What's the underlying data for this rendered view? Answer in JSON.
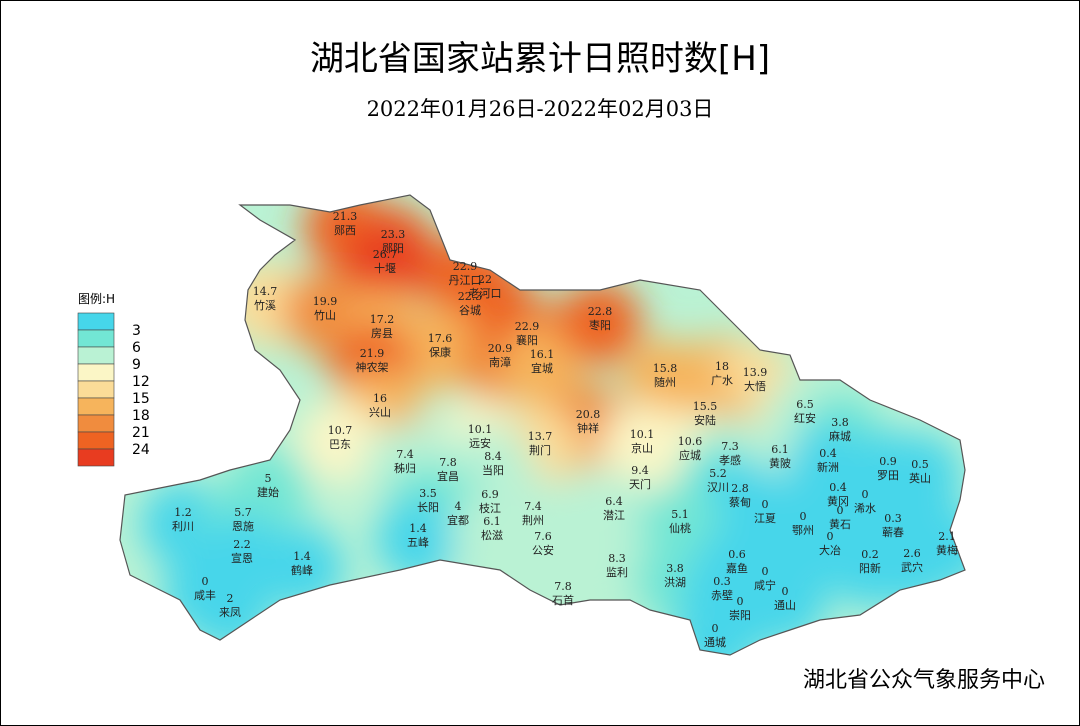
{
  "title": "湖北省国家站累计日照时数[H]",
  "subtitle": "2022年01月26日-2022年02月03日",
  "legend": {
    "title": "图例:H",
    "ticks": [
      3,
      6,
      9,
      12,
      15,
      18,
      21,
      24
    ],
    "colors": [
      "#46d6ea",
      "#72e6d4",
      "#baf2d4",
      "#fbf6c6",
      "#fbdc98",
      "#f6b45c",
      "#f08c3e",
      "#ee6322",
      "#e83c20"
    ]
  },
  "stations": [
    {
      "name": "郧西",
      "value": 21.3
    },
    {
      "name": "郧阳",
      "value": 23.3
    },
    {
      "name": "十堰",
      "value": 26.7
    },
    {
      "name": "丹江口",
      "value": 22.9
    },
    {
      "name": "老河口",
      "value": 22
    },
    {
      "name": "谷城",
      "value": 22.3
    },
    {
      "name": "竹溪",
      "value": 14.7
    },
    {
      "name": "竹山",
      "value": 19.9
    },
    {
      "name": "房县",
      "value": 17.2
    },
    {
      "name": "保康",
      "value": 17.6
    },
    {
      "name": "神农架",
      "value": 21.9
    },
    {
      "name": "南漳",
      "value": 20.9
    },
    {
      "name": "襄阳",
      "value": 22.9
    },
    {
      "name": "宜城",
      "value": 16.1
    },
    {
      "name": "枣阳",
      "value": 22.8
    },
    {
      "name": "随州",
      "value": 15.8
    },
    {
      "name": "广水",
      "value": 18
    },
    {
      "name": "大悟",
      "value": 13.9
    },
    {
      "name": "兴山",
      "value": 16
    },
    {
      "name": "钟祥",
      "value": 20.8
    },
    {
      "name": "安陆",
      "value": 15.5
    },
    {
      "name": "红安",
      "value": 6.5
    },
    {
      "name": "麻城",
      "value": 3.8
    },
    {
      "name": "巴东",
      "value": 10.7
    },
    {
      "name": "远安",
      "value": 10.1
    },
    {
      "name": "荆门",
      "value": 13.7
    },
    {
      "name": "京山",
      "value": 10.1
    },
    {
      "name": "应城",
      "value": 10.6
    },
    {
      "name": "孝感",
      "value": 7.3
    },
    {
      "name": "黄陂",
      "value": 6.1
    },
    {
      "name": "新洲",
      "value": 0.4
    },
    {
      "name": "罗田",
      "value": 0.9
    },
    {
      "name": "英山",
      "value": 0.5
    },
    {
      "name": "秭归",
      "value": 7.4
    },
    {
      "name": "宜昌",
      "value": 7.8
    },
    {
      "name": "当阳",
      "value": 8.4
    },
    {
      "name": "天门",
      "value": 9.4
    },
    {
      "name": "汉川",
      "value": 5.2
    },
    {
      "name": "蔡甸",
      "value": 2.8
    },
    {
      "name": "建始",
      "value": 5
    },
    {
      "name": "黄冈",
      "value": 0.4
    },
    {
      "name": "浠水",
      "value": 0
    },
    {
      "name": "长阳",
      "value": 3.5
    },
    {
      "name": "枝江",
      "value": 6.9
    },
    {
      "name": "荆州",
      "value": 7.4
    },
    {
      "name": "潜江",
      "value": 6.4
    },
    {
      "name": "仙桃",
      "value": 5.1
    },
    {
      "name": "利川",
      "value": 1.2
    },
    {
      "name": "恩施",
      "value": 5.7
    },
    {
      "name": "宜都",
      "value": 4
    },
    {
      "name": "五峰",
      "value": 1.4
    },
    {
      "name": "松滋",
      "value": 6.1
    },
    {
      "name": "公安",
      "value": 7.6
    },
    {
      "name": "江夏",
      "value": 0
    },
    {
      "name": "鄂州",
      "value": 0
    },
    {
      "name": "黄石",
      "value": 0
    },
    {
      "name": "蕲春",
      "value": 0.3
    },
    {
      "name": "宣恩",
      "value": 2.2
    },
    {
      "name": "鹤峰",
      "value": 1.4
    },
    {
      "name": "大冶",
      "value": 0
    },
    {
      "name": "阳新",
      "value": 0.2
    },
    {
      "name": "武穴",
      "value": 2.6
    },
    {
      "name": "黄梅",
      "value": 2.1
    },
    {
      "name": "监利",
      "value": 8.3
    },
    {
      "name": "洪湖",
      "value": 3.8
    },
    {
      "name": "嘉鱼",
      "value": 0.6
    },
    {
      "name": "赤壁",
      "value": 0.3
    },
    {
      "name": "咸宁",
      "value": 0
    },
    {
      "name": "咸丰",
      "value": 0
    },
    {
      "name": "来凤",
      "value": 2
    },
    {
      "name": "石首",
      "value": 7.8
    },
    {
      "name": "崇阳",
      "value": 0
    },
    {
      "name": "通山",
      "value": 0
    },
    {
      "name": "通城",
      "value": 0
    }
  ],
  "footer": "湖北省公众气象服务中心"
}
